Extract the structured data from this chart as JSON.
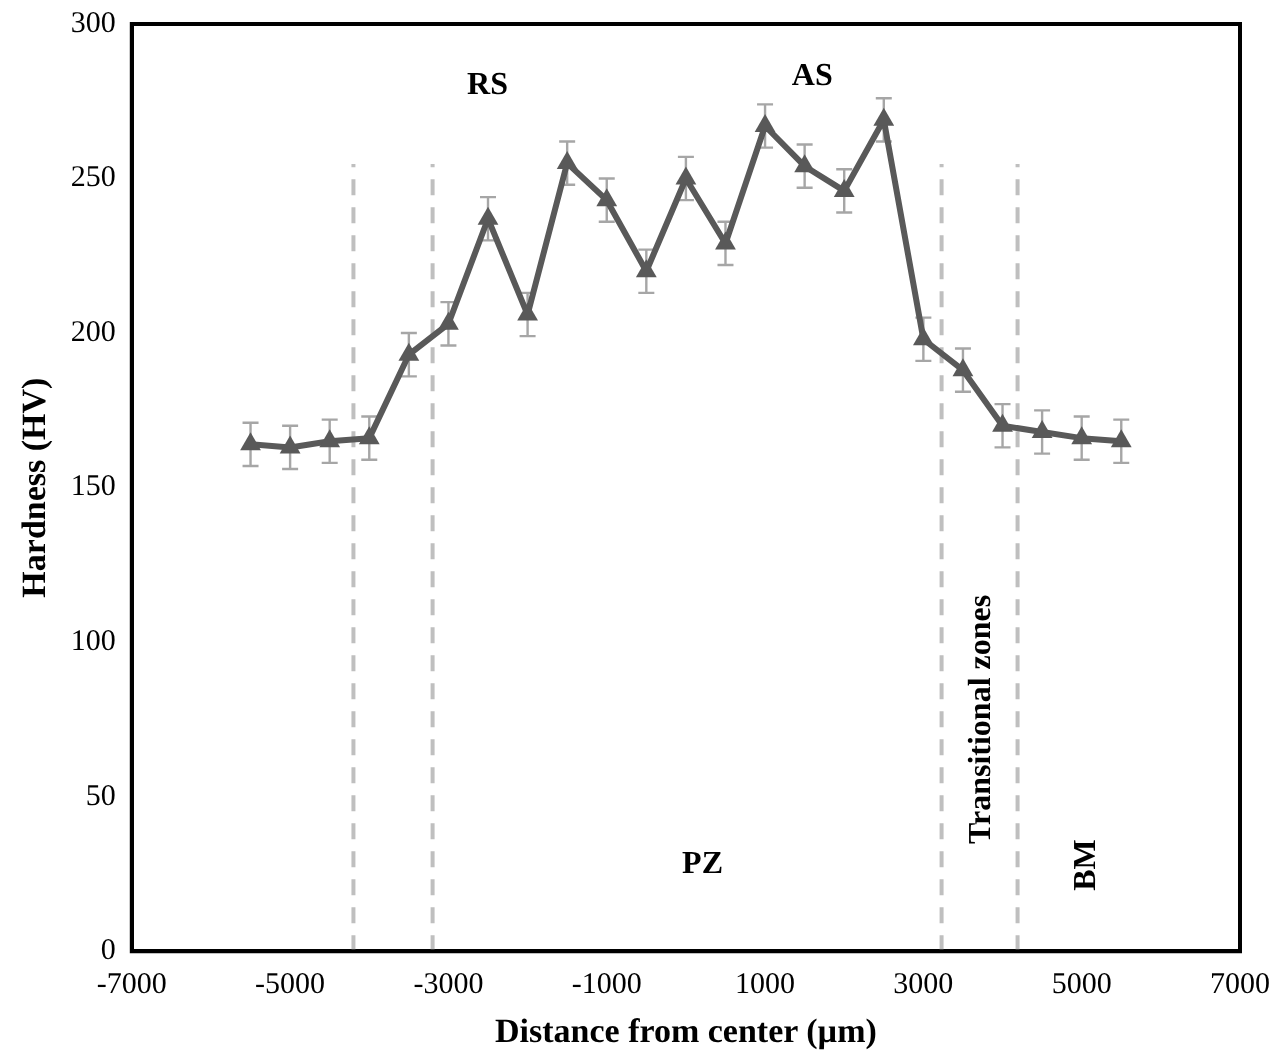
{
  "chart_data": {
    "type": "line",
    "xlabel": "Distance from center (µm)",
    "ylabel": "Hardness (HV)",
    "x": [
      -5500,
      -5000,
      -4500,
      -4000,
      -3500,
      -3000,
      -2500,
      -2000,
      -1500,
      -1000,
      -500,
      0,
      500,
      1000,
      1500,
      2000,
      2500,
      3000,
      3500,
      4000,
      4500,
      5000,
      5500
    ],
    "series": [
      {
        "color": "#595959",
        "values": [
          164,
          163,
          165,
          166,
          193,
          203,
          237,
          206,
          255,
          243,
          220,
          250,
          229,
          267,
          254,
          246,
          269,
          198,
          188,
          170,
          168,
          166,
          165
        ],
        "errors": [
          7,
          7,
          7,
          7,
          7,
          7,
          7,
          7,
          7,
          7,
          7,
          7,
          7,
          7,
          7,
          7,
          7,
          7,
          7,
          7,
          7,
          7,
          7
        ]
      }
    ],
    "xlim": [
      -7000,
      7000
    ],
    "xticks": [
      -7000,
      -5000,
      -3000,
      -1000,
      1000,
      3000,
      5000,
      7000
    ],
    "ylim": [
      0,
      300
    ],
    "yticks": [
      0,
      50,
      100,
      150,
      200,
      250,
      300
    ],
    "ref_lines": [
      {
        "axis": "x",
        "value": -4200,
        "color": "#bfbfbf",
        "line_style": "dashed"
      },
      {
        "axis": "x",
        "value": -3200,
        "color": "#bfbfbf",
        "line_style": "dashed"
      },
      {
        "axis": "x",
        "value": 3230,
        "color": "#bfbfbf",
        "line_style": "dashed"
      },
      {
        "axis": "x",
        "value": 4190,
        "color": "#bfbfbf",
        "line_style": "dashed"
      }
    ],
    "annotations": [
      "RS",
      "AS",
      "PZ",
      "Transitional zones",
      "BM"
    ],
    "marker": "triangle",
    "line_style": "solid",
    "grid": false,
    "legend": false
  }
}
